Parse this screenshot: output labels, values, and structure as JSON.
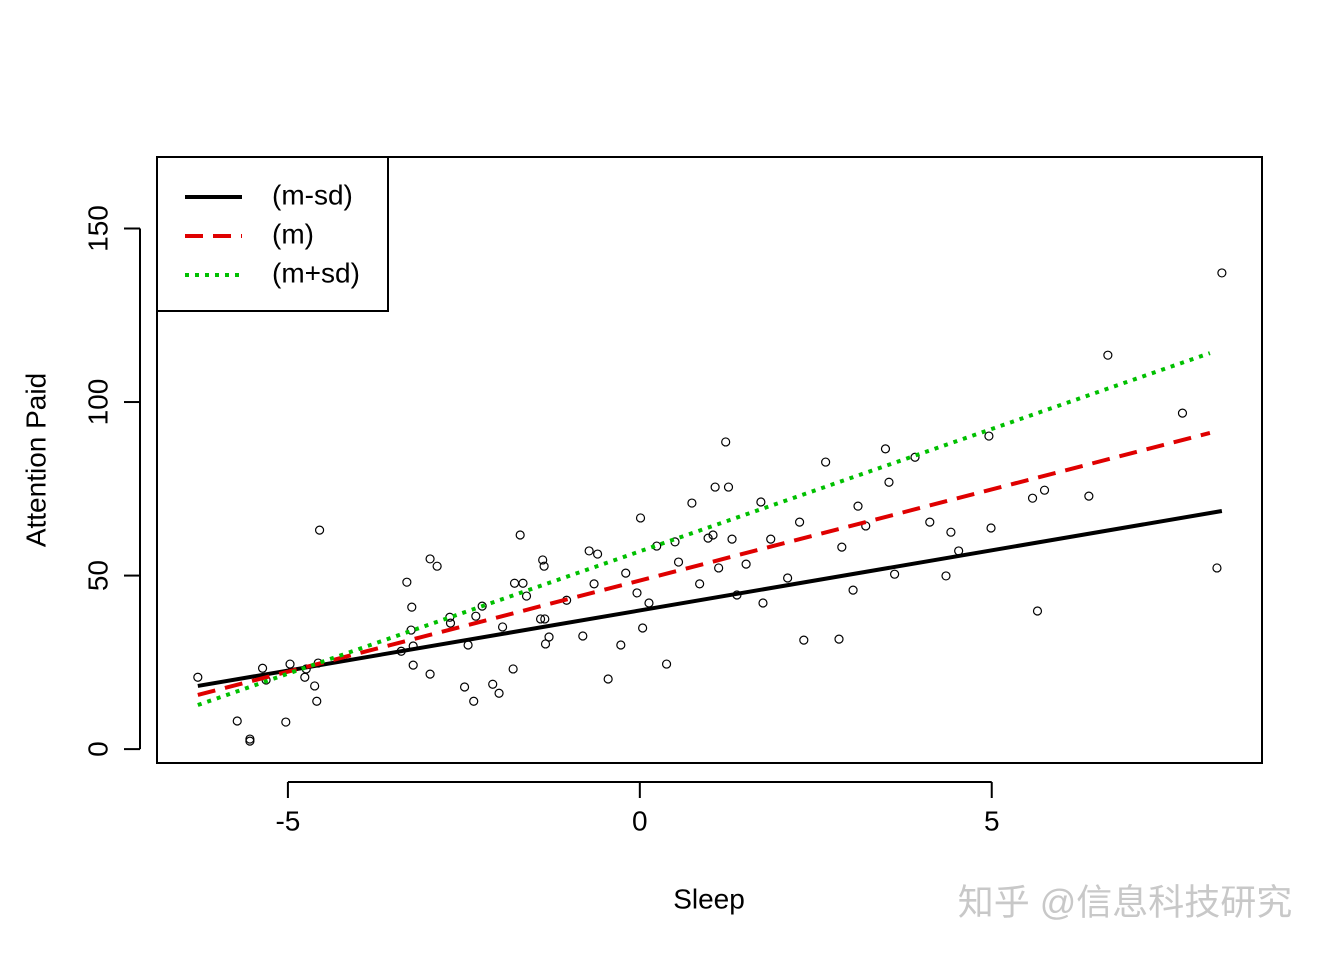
{
  "chart_data": {
    "type": "scatter",
    "xlabel": "Sleep",
    "ylabel": "Attention Paid",
    "xlim": [
      -6.86,
      8.84
    ],
    "ylim": [
      -4.0,
      170.6
    ],
    "xticks": [
      -5,
      0,
      5
    ],
    "yticks": [
      0,
      50,
      100,
      150
    ],
    "point_color": "#000000",
    "x": [
      -6.28,
      -5.72,
      -5.54,
      -5.54,
      -5.36,
      -5.31,
      -4.97,
      -5.03,
      -4.76,
      -4.74,
      -4.62,
      -4.59,
      -4.57,
      -4.55,
      -3.39,
      -3.31,
      -3.25,
      -3.24,
      -3.22,
      -3.22,
      -2.98,
      -2.98,
      -2.88,
      -2.7,
      -2.69,
      -2.49,
      -2.44,
      -2.36,
      -2.33,
      -2.24,
      -2.09,
      -2.0,
      -1.95,
      -1.8,
      -1.78,
      -1.7,
      -1.66,
      -1.61,
      -1.41,
      -1.38,
      -1.36,
      -1.35,
      -1.34,
      -1.29,
      -1.04,
      -0.81,
      -0.72,
      -0.65,
      -0.6,
      -0.45,
      -0.27,
      -0.2,
      -0.04,
      0.01,
      0.04,
      0.13,
      0.24,
      0.38,
      0.5,
      0.55,
      0.74,
      0.85,
      0.97,
      1.04,
      1.07,
      1.12,
      1.22,
      1.26,
      1.31,
      1.38,
      1.51,
      1.72,
      1.75,
      1.86,
      2.1,
      2.27,
      2.33,
      2.64,
      2.83,
      2.87,
      3.03,
      3.1,
      3.21,
      3.49,
      3.54,
      3.62,
      3.91,
      4.12,
      4.35,
      4.42,
      4.53,
      4.96,
      4.99,
      5.58,
      5.65,
      5.75,
      6.38,
      6.65,
      7.71,
      8.2,
      8.27
    ],
    "values": [
      20.7,
      8.1,
      2.9,
      2.3,
      23.3,
      19.9,
      24.5,
      7.8,
      20.7,
      23.1,
      18.2,
      13.8,
      24.8,
      63.1,
      28.2,
      48.1,
      34.3,
      40.9,
      24.2,
      29.7,
      21.6,
      54.8,
      52.7,
      38.0,
      36.3,
      17.9,
      30.0,
      13.8,
      38.3,
      41.2,
      18.7,
      16.1,
      35.2,
      23.1,
      47.8,
      61.7,
      47.8,
      44.1,
      37.5,
      54.5,
      52.7,
      37.5,
      30.3,
      32.3,
      42.9,
      32.6,
      57.1,
      47.6,
      56.2,
      20.2,
      30.0,
      50.7,
      45.0,
      66.6,
      34.9,
      42.1,
      58.5,
      24.5,
      59.7,
      53.9,
      70.9,
      47.6,
      60.8,
      61.7,
      75.5,
      52.2,
      88.5,
      75.5,
      60.5,
      44.4,
      53.3,
      71.2,
      42.1,
      60.5,
      49.3,
      65.4,
      31.4,
      82.7,
      31.7,
      58.2,
      45.8,
      70.0,
      64.3,
      86.5,
      76.9,
      50.4,
      84.1,
      65.4,
      49.9,
      62.5,
      57.1,
      90.2,
      63.7,
      72.3,
      39.8,
      74.6,
      72.9,
      113.5,
      96.8,
      52.2,
      137.2
    ],
    "lines": [
      {
        "name": "(m-sd)",
        "color": "#000000",
        "dash": "solid",
        "x": [
          -6.28,
          8.27
        ],
        "values": [
          18.2,
          68.6
        ]
      },
      {
        "name": "(m)",
        "color": "#df0000",
        "dash": "dashed",
        "x": [
          -6.28,
          8.1
        ],
        "values": [
          15.6,
          91.1
        ]
      },
      {
        "name": "(m+sd)",
        "color": "#00c000",
        "dash": "dotted",
        "x": [
          -6.28,
          8.1
        ],
        "values": [
          12.7,
          114.1
        ]
      }
    ],
    "legend": "top-left",
    "watermark": "知乎 @信息科技研究"
  }
}
